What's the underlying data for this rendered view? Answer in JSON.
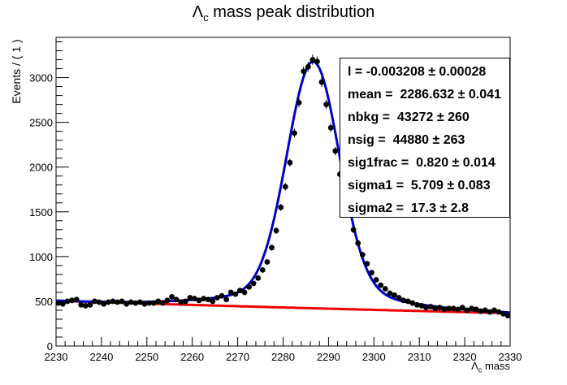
{
  "chart_data": {
    "type": "scatter",
    "title_prefix": "Λ",
    "title_sub": "c",
    "title_suffix": " mass peak distribution",
    "xlabel_prefix": "Λ",
    "xlabel_sub": "c",
    "xlabel_suffix": " mass",
    "ylabel": "Events / ( 1 )",
    "xlim": [
      2230,
      2330
    ],
    "ylim": [
      0,
      3450
    ],
    "xticks": [
      2230,
      2240,
      2250,
      2260,
      2270,
      2280,
      2290,
      2300,
      2310,
      2320,
      2330
    ],
    "yticks": [
      0,
      500,
      1000,
      1500,
      2000,
      2500,
      3000
    ],
    "grid": false,
    "colors": {
      "points": "#000000",
      "total_fit": "#0000cc",
      "background_fit": "#ee0000"
    },
    "fit_params": {
      "l": -0.003208,
      "mean": 2286.632,
      "nbkg": 43272,
      "nsig": 44880,
      "sig1frac": 0.82,
      "sigma1": 5.709,
      "sigma2": 17.3
    },
    "stats": [
      {
        "name": "l",
        "value": "-0.003208",
        "error": "0.00028"
      },
      {
        "name": "mean",
        "value": "2286.632",
        "error": "0.041"
      },
      {
        "name": "nbkg",
        "value": "43272",
        "error": "260"
      },
      {
        "name": "nsig",
        "value": "44880",
        "error": "263"
      },
      {
        "name": "sig1frac",
        "value": "0.820",
        "error": "0.014"
      },
      {
        "name": "sigma1",
        "value": "5.709",
        "error": "0.083"
      },
      {
        "name": "sigma2",
        "value": "17.3",
        "error": "2.8"
      }
    ],
    "series": [
      {
        "type": "points",
        "x": [
          2230.5,
          2231.5,
          2232.5,
          2233.5,
          2234.5,
          2235.5,
          2236.5,
          2237.5,
          2238.5,
          2239.5,
          2240.5,
          2241.5,
          2242.5,
          2243.5,
          2244.5,
          2245.5,
          2246.5,
          2247.5,
          2248.5,
          2249.5,
          2250.5,
          2251.5,
          2252.5,
          2253.5,
          2254.5,
          2255.5,
          2256.5,
          2257.5,
          2258.5,
          2259.5,
          2260.5,
          2261.5,
          2262.5,
          2263.5,
          2264.5,
          2265.5,
          2266.5,
          2267.5,
          2268.5,
          2269.5,
          2270.5,
          2271.5,
          2272.5,
          2273.5,
          2274.5,
          2275.5,
          2276.5,
          2277.5,
          2278.5,
          2279.5,
          2280.5,
          2281.5,
          2282.5,
          2283.5,
          2284.5,
          2285.5,
          2286.5,
          2287.5,
          2288.5,
          2289.5,
          2290.5,
          2291.5,
          2292.5,
          2293.5,
          2294.5,
          2295.5,
          2296.5,
          2297.5,
          2298.5,
          2299.5,
          2300.5,
          2301.5,
          2302.5,
          2303.5,
          2304.5,
          2305.5,
          2306.5,
          2307.5,
          2308.5,
          2309.5,
          2310.5,
          2311.5,
          2312.5,
          2313.5,
          2314.5,
          2315.5,
          2316.5,
          2317.5,
          2318.5,
          2319.5,
          2320.5,
          2321.5,
          2322.5,
          2323.5,
          2324.5,
          2325.5,
          2326.5,
          2327.5,
          2328.5,
          2329.5
        ],
        "y": [
          480,
          470,
          500,
          510,
          520,
          460,
          450,
          460,
          500,
          490,
          470,
          490,
          500,
          490,
          500,
          470,
          490,
          480,
          490,
          470,
          480,
          480,
          500,
          480,
          510,
          550,
          520,
          490,
          500,
          540,
          530,
          510,
          530,
          520,
          500,
          540,
          560,
          520,
          600,
          580,
          620,
          600,
          660,
          700,
          760,
          850,
          940,
          1100,
          1290,
          1550,
          1780,
          2050,
          2380,
          2720,
          3070,
          3120,
          3200,
          3180,
          2950,
          2700,
          2440,
          2180,
          1920,
          1700,
          1500,
          1300,
          1150,
          1020,
          920,
          820,
          740,
          680,
          640,
          590,
          570,
          540,
          510,
          500,
          480,
          460,
          450,
          430,
          440,
          420,
          430,
          410,
          420,
          420,
          410,
          430,
          400,
          420,
          410,
          390,
          400,
          380,
          400,
          380,
          360,
          340
        ],
        "errors": [
          22,
          22,
          22,
          23,
          23,
          21,
          21,
          21,
          22,
          22,
          22,
          22,
          22,
          22,
          22,
          22,
          22,
          22,
          22,
          22,
          22,
          22,
          22,
          22,
          23,
          23,
          23,
          22,
          22,
          23,
          23,
          23,
          23,
          23,
          22,
          23,
          24,
          23,
          24,
          24,
          25,
          24,
          26,
          26,
          28,
          29,
          31,
          33,
          36,
          39,
          42,
          45,
          49,
          52,
          55,
          56,
          57,
          56,
          54,
          52,
          49,
          47,
          44,
          41,
          39,
          36,
          34,
          32,
          30,
          29,
          27,
          26,
          25,
          24,
          24,
          23,
          23,
          22,
          22,
          21,
          21,
          21,
          21,
          20,
          21,
          20,
          20,
          20,
          20,
          21,
          20,
          20,
          20,
          20,
          20,
          19,
          20,
          19,
          19,
          18
        ]
      }
    ]
  }
}
